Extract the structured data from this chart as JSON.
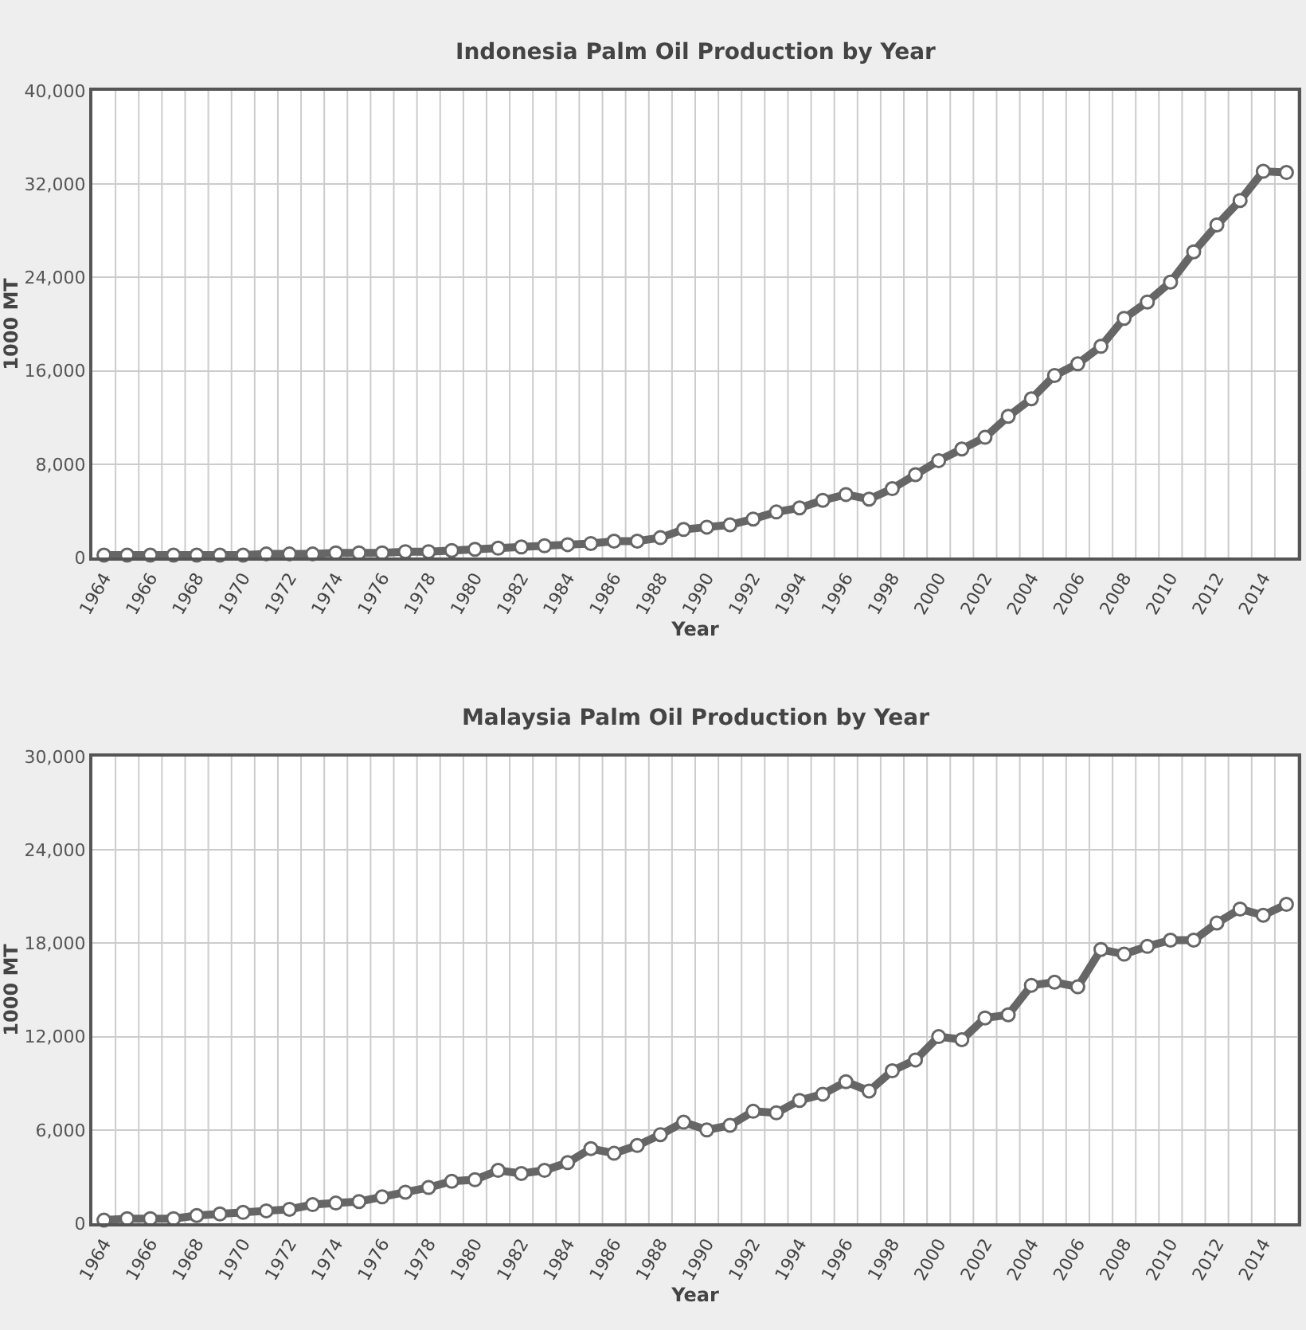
{
  "chart_data": [
    {
      "type": "line",
      "title": "Indonesia Palm Oil Production by Year",
      "xlabel": "Year",
      "ylabel": "1000 MT",
      "categories": [
        "1964",
        null,
        "1966",
        null,
        "1968",
        null,
        "1970",
        null,
        "1972",
        null,
        "1974",
        null,
        "1976",
        null,
        "1978",
        null,
        "1980",
        null,
        "1982",
        null,
        "1984",
        null,
        "1986",
        null,
        "1988",
        null,
        "1990",
        null,
        "1992",
        null,
        "1994",
        null,
        "1996",
        null,
        "1998",
        null,
        "2000",
        null,
        "2002",
        null,
        "2004",
        null,
        "2006",
        null,
        "2008",
        null,
        "2010",
        null,
        "2012",
        null,
        "2014",
        null
      ],
      "series": [
        {
          "color": "#666666",
          "values": [
            200,
            200,
            200,
            200,
            200,
            200,
            200,
            300,
            300,
            300,
            400,
            400,
            400,
            500,
            500,
            600,
            700,
            800,
            900,
            1000,
            1100,
            1200,
            1400,
            1400,
            1700,
            2400,
            2600,
            2800,
            3300,
            3900,
            4250,
            4900,
            5400,
            5000,
            5900,
            7100,
            8300,
            9300,
            10300,
            12100,
            13600,
            15600,
            16600,
            18100,
            20500,
            21900,
            23600,
            26200,
            28500,
            30600,
            33100,
            33000
          ]
        }
      ],
      "ylim": [
        0,
        40000
      ],
      "yticks": [
        0,
        {
          "value": 8000,
          "label": "8,000"
        },
        {
          "value": 16000,
          "label": "16,000"
        },
        {
          "value": 24000,
          "label": "24,000"
        },
        {
          "value": 32000,
          "label": "32,000"
        },
        {
          "value": 40000,
          "label": "40,000"
        }
      ],
      "grid": true,
      "marker": "circle",
      "line_style": "solid"
    },
    {
      "type": "line",
      "title": "Malaysia Palm Oil Production by Year",
      "xlabel": "Year",
      "ylabel": "1000 MT",
      "categories": [
        "1964",
        null,
        "1966",
        null,
        "1968",
        null,
        "1970",
        null,
        "1972",
        null,
        "1974",
        null,
        "1976",
        null,
        "1978",
        null,
        "1980",
        null,
        "1982",
        null,
        "1984",
        null,
        "1986",
        null,
        "1988",
        null,
        "1990",
        null,
        "1992",
        null,
        "1994",
        null,
        "1996",
        null,
        "1998",
        null,
        "2000",
        null,
        "2002",
        null,
        "2004",
        null,
        "2006",
        null,
        "2008",
        null,
        "2010",
        null,
        "2012",
        null,
        "2014",
        null
      ],
      "series": [
        {
          "color": "#666666",
          "values": [
            200,
            300,
            300,
            300,
            500,
            600,
            700,
            800,
            900,
            1200,
            1300,
            1400,
            1700,
            2000,
            2300,
            2700,
            2800,
            3400,
            3200,
            3400,
            3900,
            4800,
            4500,
            5000,
            5700,
            6500,
            6000,
            6300,
            7200,
            7100,
            7900,
            8300,
            9100,
            8500,
            9800,
            10500,
            12000,
            11800,
            13200,
            13400,
            15300,
            15500,
            15200,
            17600,
            17300,
            17800,
            18200,
            18200,
            19300,
            20200,
            19800,
            20500
          ]
        }
      ],
      "ylim": [
        0,
        30000
      ],
      "yticks": [
        0,
        {
          "value": 6000,
          "label": "6,000"
        },
        {
          "value": 12000,
          "label": "12,000"
        },
        {
          "value": 18000,
          "label": "18,000"
        },
        {
          "value": 24000,
          "label": "24,000"
        },
        {
          "value": 30000,
          "label": "30,000"
        }
      ],
      "grid": true,
      "marker": "circle",
      "line_style": "solid"
    }
  ]
}
